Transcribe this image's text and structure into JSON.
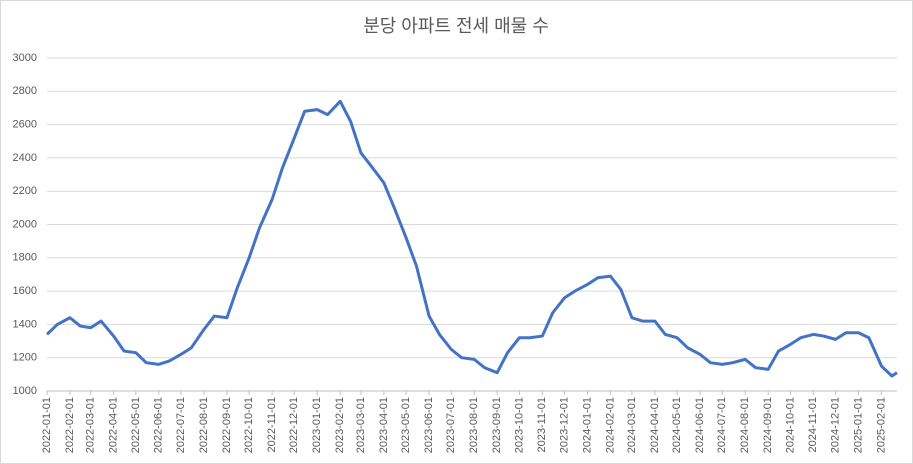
{
  "chart_data": {
    "type": "line",
    "title": "분당 아파트 전세 매물 수",
    "x": [
      "2022-01-01",
      "2022-01-15",
      "2022-02-01",
      "2022-02-15",
      "2022-03-01",
      "2022-03-15",
      "2022-04-01",
      "2022-04-15",
      "2022-05-01",
      "2022-05-15",
      "2022-06-01",
      "2022-06-15",
      "2022-07-01",
      "2022-07-15",
      "2022-08-01",
      "2022-08-15",
      "2022-09-01",
      "2022-09-15",
      "2022-10-01",
      "2022-10-15",
      "2022-11-01",
      "2022-11-15",
      "2022-12-01",
      "2022-12-15",
      "2023-01-01",
      "2023-01-15",
      "2023-02-01",
      "2023-02-15",
      "2023-03-01",
      "2023-03-15",
      "2023-04-01",
      "2023-04-15",
      "2023-05-01",
      "2023-05-15",
      "2023-06-01",
      "2023-06-15",
      "2023-07-01",
      "2023-07-15",
      "2023-08-01",
      "2023-08-15",
      "2023-09-01",
      "2023-09-15",
      "2023-10-01",
      "2023-10-15",
      "2023-11-01",
      "2023-11-15",
      "2023-12-01",
      "2023-12-15",
      "2024-01-01",
      "2024-01-15",
      "2024-02-01",
      "2024-02-15",
      "2024-03-01",
      "2024-03-15",
      "2024-04-01",
      "2024-04-15",
      "2024-05-01",
      "2024-05-15",
      "2024-06-01",
      "2024-06-15",
      "2024-07-01",
      "2024-07-15",
      "2024-08-01",
      "2024-08-15",
      "2024-09-01",
      "2024-09-15",
      "2024-10-01",
      "2024-10-15",
      "2024-11-01",
      "2024-11-15",
      "2024-12-01",
      "2024-12-15",
      "2025-01-01",
      "2025-01-15",
      "2025-02-01",
      "2025-02-15",
      "2025-02-22"
    ],
    "series": [
      {
        "color": "#4472c4",
        "values": [
          1340,
          1400,
          1440,
          1390,
          1380,
          1420,
          1330,
          1240,
          1230,
          1170,
          1160,
          1180,
          1220,
          1260,
          1370,
          1450,
          1440,
          1620,
          1800,
          1980,
          2150,
          2340,
          2520,
          2680,
          2690,
          2660,
          2740,
          2620,
          2430,
          2350,
          2250,
          2100,
          1920,
          1750,
          1450,
          1340,
          1250,
          1200,
          1190,
          1140,
          1110,
          1230,
          1320,
          1320,
          1330,
          1470,
          1560,
          1600,
          1640,
          1680,
          1690,
          1610,
          1440,
          1420,
          1420,
          1340,
          1320,
          1260,
          1220,
          1170,
          1160,
          1170,
          1190,
          1140,
          1130,
          1240,
          1280,
          1320,
          1340,
          1330,
          1310,
          1350,
          1350,
          1320,
          1150,
          1090,
          1110
        ]
      }
    ],
    "xlim": [
      "2022-01-01",
      "2025-02-22"
    ],
    "xticks": [
      "2022-01-01",
      "2022-02-01",
      "2022-03-01",
      "2022-04-01",
      "2022-05-01",
      "2022-06-01",
      "2022-07-01",
      "2022-08-01",
      "2022-09-01",
      "2022-10-01",
      "2022-11-01",
      "2022-12-01",
      "2023-01-01",
      "2023-02-01",
      "2023-03-01",
      "2023-04-01",
      "2023-05-01",
      "2023-06-01",
      "2023-07-01",
      "2023-08-01",
      "2023-09-01",
      "2023-10-01",
      "2023-11-01",
      "2023-12-01",
      "2024-01-01",
      "2024-02-01",
      "2024-03-01",
      "2024-04-01",
      "2024-05-01",
      "2024-06-01",
      "2024-07-01",
      "2024-08-01",
      "2024-09-01",
      "2024-10-01",
      "2024-11-01",
      "2024-12-01",
      "2025-01-01",
      "2025-02-01"
    ],
    "ylim": [
      1000,
      3000
    ],
    "yticks": [
      1000,
      1200,
      1400,
      1600,
      1800,
      2000,
      2200,
      2400,
      2600,
      2800,
      3000
    ],
    "grid": true
  }
}
